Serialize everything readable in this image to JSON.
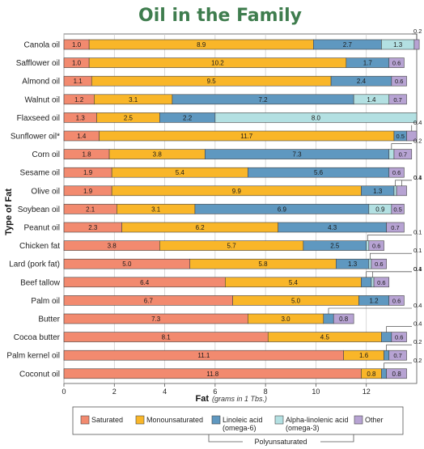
{
  "chart_data": {
    "type": "bar",
    "orientation": "horizontal",
    "stacked": true,
    "title": "Oil in the Family",
    "xlabel": "Fat",
    "xlabel_unit": "(grams in 1 Tbs.)",
    "ylabel": "Type of Fat",
    "xlim": [
      0,
      14
    ],
    "xticks": [
      0,
      2,
      4,
      6,
      8,
      10,
      12
    ],
    "grid": "vertical",
    "legend_position": "bottom",
    "legend_group_label": "Polyunsaturated",
    "categories": [
      "Canola oil",
      "Safflower oil",
      "Almond oil",
      "Walnut oil",
      "Flaxseed oil",
      "Sunflower oil*",
      "Corn oil",
      "Sesame oil",
      "Olive oil",
      "Soybean oil",
      "Peanut oil",
      "Chicken fat",
      "Lard (pork fat)",
      "Beef tallow",
      "Palm oil",
      "Butter",
      "Cocoa butter",
      "Palm kernel oil",
      "Coconut oil"
    ],
    "series": [
      {
        "name": "Saturated",
        "color": "#f28a6f",
        "values": [
          1.0,
          1.0,
          1.1,
          1.2,
          1.3,
          1.4,
          1.8,
          1.9,
          1.9,
          2.1,
          2.3,
          3.8,
          5.0,
          6.4,
          6.7,
          7.3,
          8.1,
          11.1,
          11.8
        ]
      },
      {
        "name": "Monounsaturated",
        "color": "#f9b629",
        "values": [
          8.9,
          10.2,
          9.5,
          3.1,
          2.5,
          11.7,
          3.8,
          5.4,
          9.9,
          3.1,
          6.2,
          5.7,
          5.8,
          5.4,
          5.0,
          3.0,
          4.5,
          1.6,
          0.8
        ]
      },
      {
        "name": "Linoleic acid (omega-6)",
        "color": "#5f98c0",
        "values": [
          2.7,
          1.7,
          2.4,
          7.2,
          2.2,
          0.5,
          7.3,
          5.6,
          1.3,
          6.9,
          4.3,
          2.5,
          1.3,
          0.4,
          1.2,
          0.4,
          0.4,
          0.2,
          0.2
        ]
      },
      {
        "name": "Alpha-linolenic acid (omega-3)",
        "color": "#b3e0e2",
        "values": [
          1.3,
          0,
          0,
          1.4,
          8.0,
          0,
          0.2,
          0,
          0.1,
          0.9,
          0,
          0.1,
          0.1,
          0.1,
          0,
          0,
          0,
          0,
          0
        ]
      },
      {
        "name": "Other",
        "color": "#b7a3d3",
        "values": [
          0.2,
          0.6,
          0.6,
          0.7,
          0,
          0.4,
          0.7,
          0.6,
          0.4,
          0.5,
          0.7,
          0.6,
          0.6,
          0.6,
          0.6,
          0.8,
          0.6,
          0.7,
          0.8
        ]
      }
    ]
  }
}
